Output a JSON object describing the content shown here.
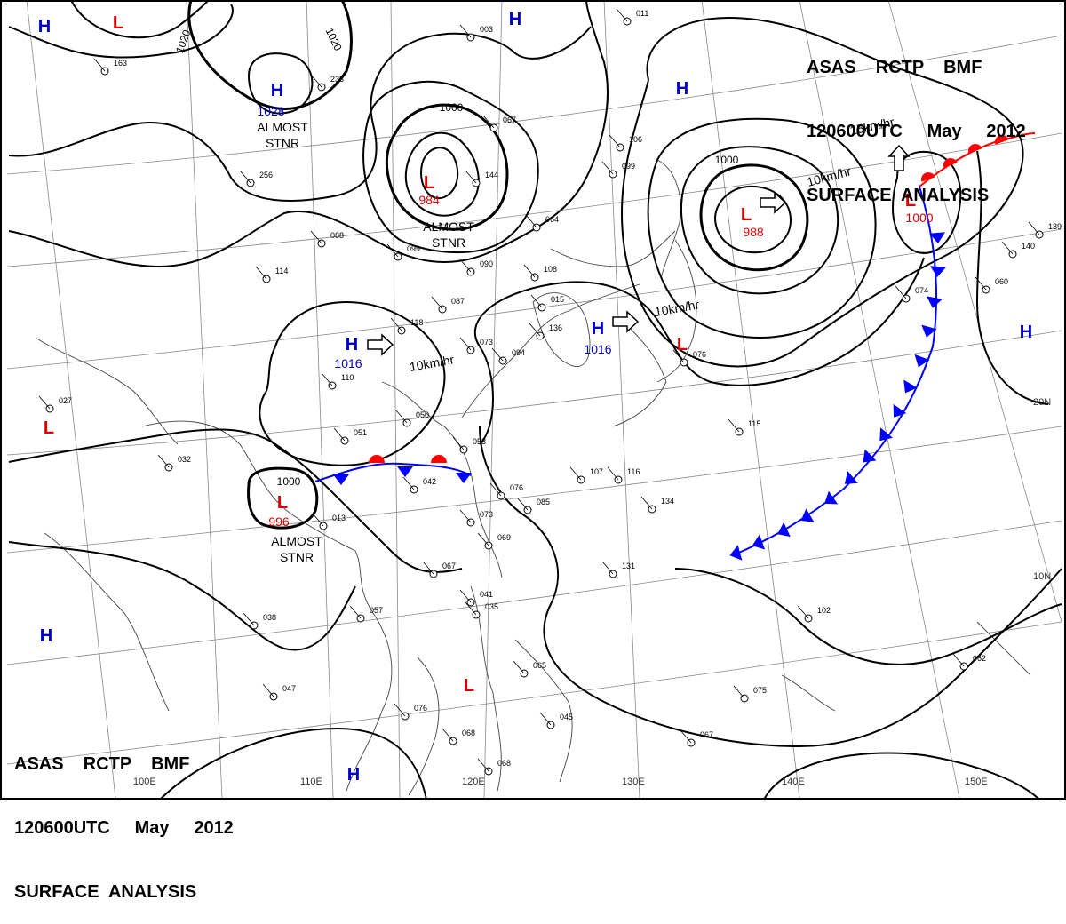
{
  "header": {
    "line1": "ASAS    RCTP    BMF",
    "line2": "120600UTC     May     2012",
    "line3": "SURFACE  ANALYSIS"
  },
  "colors": {
    "isobar": "#000000",
    "high": "#0000cc",
    "low": "#dd0000",
    "cold_front": "#0000ff",
    "warm_front": "#ff0000",
    "grid": "#888888",
    "coast": "#444444"
  },
  "grid_labels": {
    "lon": [
      "100E",
      "110E",
      "120E",
      "130E",
      "140E",
      "150E"
    ],
    "lat": [
      "20N",
      "10N"
    ]
  },
  "isobar_labels": [
    "1020",
    "1020",
    "1000",
    "1000",
    "1000"
  ],
  "pressure_centers": [
    {
      "type": "H",
      "value": "1028",
      "note": "ALMOST STNR"
    },
    {
      "type": "L",
      "value": "984",
      "note": "ALMOST STNR"
    },
    {
      "type": "L",
      "value": "988"
    },
    {
      "type": "L",
      "value": "1000"
    },
    {
      "type": "H",
      "value": "1016"
    },
    {
      "type": "H",
      "value": "1016"
    },
    {
      "type": "L",
      "value": "996",
      "note": "ALMOST STNR"
    },
    {
      "type": "H"
    },
    {
      "type": "L"
    },
    {
      "type": "H"
    },
    {
      "type": "H"
    },
    {
      "type": "L"
    },
    {
      "type": "H"
    },
    {
      "type": "H"
    },
    {
      "type": "H"
    },
    {
      "type": "L"
    },
    {
      "type": "L"
    }
  ],
  "motion_labels": [
    "15km/hr",
    "10km/hr",
    "10km/hr",
    "10km/hr"
  ],
  "station_values": [
    "163",
    "233",
    "256",
    "088",
    "099",
    "090",
    "108",
    "087",
    "118",
    "064",
    "106",
    "099",
    "114",
    "110",
    "050",
    "051",
    "058",
    "042",
    "076",
    "085",
    "073",
    "069",
    "013",
    "067",
    "057",
    "038",
    "047",
    "076",
    "068",
    "068",
    "045",
    "065",
    "041",
    "035",
    "067",
    "075",
    "131",
    "134",
    "116",
    "107",
    "115",
    "102",
    "076",
    "074",
    "060",
    "062",
    "032",
    "027",
    "073",
    "067",
    "144",
    "011",
    "003",
    "094",
    "015",
    "136",
    "140",
    "139"
  ]
}
